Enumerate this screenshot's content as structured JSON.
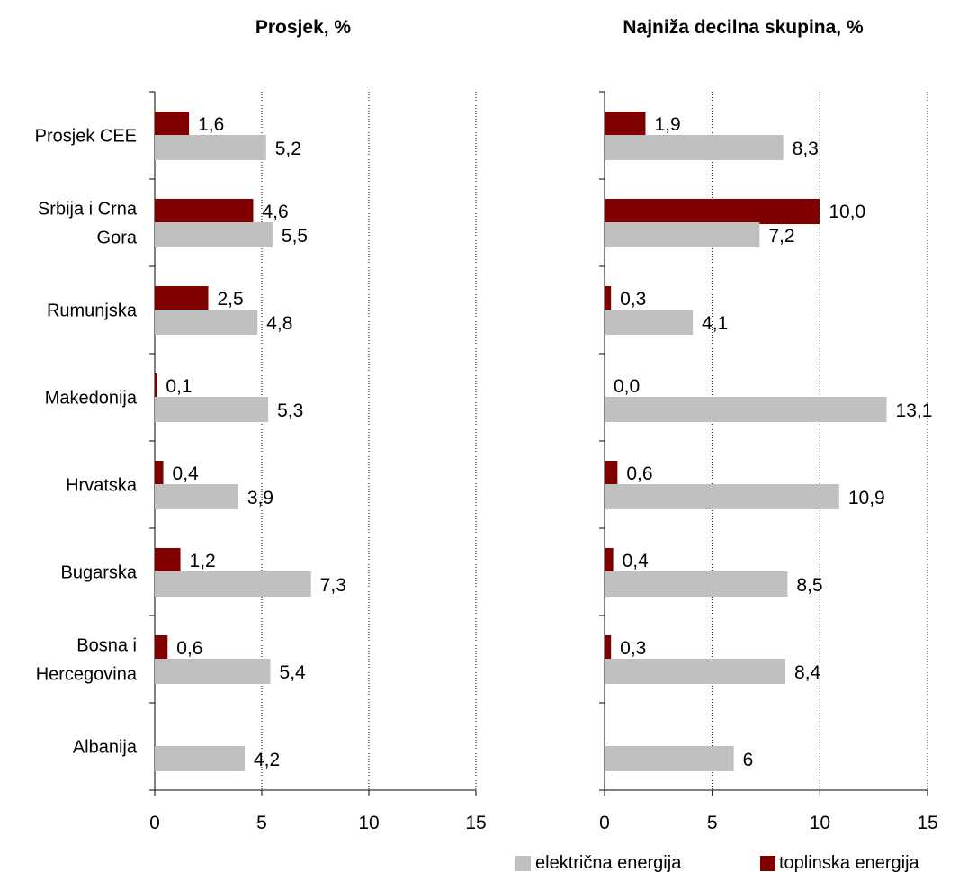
{
  "chart_data": [
    {
      "type": "bar",
      "orientation": "horizontal",
      "title": "Prosjek, %",
      "categories": [
        "Prosjek CEE",
        "Srbija i Crna Gora",
        "Rumunjska",
        "Makedonija",
        "Hrvatska",
        "Bugarska",
        "Bosna i Hercegovina",
        "Albanija"
      ],
      "category_lines": [
        [
          "Prosjek CEE"
        ],
        [
          "Srbija i Crna",
          "Gora"
        ],
        [
          "Rumunjska"
        ],
        [
          "Makedonija"
        ],
        [
          "Hrvatska"
        ],
        [
          "Bugarska"
        ],
        [
          "Bosna i",
          "Hercegovina"
        ],
        [
          "Albanija"
        ]
      ],
      "series": [
        {
          "name": "toplinska energija",
          "color": "#800000",
          "values": [
            1.6,
            4.6,
            2.5,
            0.1,
            0.4,
            1.2,
            0.6,
            null
          ],
          "labels": [
            "1,6",
            "4,6",
            "2,5",
            "0,1",
            "0,4",
            "1,2",
            "0,6",
            ""
          ]
        },
        {
          "name": "električna energija",
          "color": "#c0c0c0",
          "values": [
            5.2,
            5.5,
            4.8,
            5.3,
            3.9,
            7.3,
            5.4,
            4.2
          ],
          "labels": [
            "5,2",
            "5,5",
            "4,8",
            "5,3",
            "3,9",
            "7,3",
            "5,4",
            "4,2"
          ]
        }
      ],
      "xlim": [
        0,
        15
      ],
      "xticks": [
        0,
        5,
        10,
        15
      ],
      "xtick_labels": [
        "0",
        "5",
        "10",
        "15"
      ],
      "grid": "vertical dotted"
    },
    {
      "type": "bar",
      "orientation": "horizontal",
      "title": "Najniža decilna skupina, %",
      "categories": [
        "Prosjek CEE",
        "Srbija i Crna Gora",
        "Rumunjska",
        "Makedonija",
        "Hrvatska",
        "Bugarska",
        "Bosna i Hercegovina",
        "Albanija"
      ],
      "series": [
        {
          "name": "toplinska energija",
          "color": "#800000",
          "values": [
            1.9,
            10.0,
            0.3,
            0.0,
            0.6,
            0.4,
            0.3,
            null
          ],
          "labels": [
            "1,9",
            "10,0",
            "0,3",
            "0,0",
            "0,6",
            "0,4",
            "0,3",
            ""
          ]
        },
        {
          "name": "električna energija",
          "color": "#c0c0c0",
          "values": [
            8.3,
            7.2,
            4.1,
            13.1,
            10.9,
            8.5,
            8.4,
            6
          ],
          "labels": [
            "8,3",
            "7,2",
            "4,1",
            "13,1",
            "10,9",
            "8,5",
            "8,4",
            "6"
          ]
        }
      ],
      "xlim": [
        0,
        15
      ],
      "xticks": [
        0,
        5,
        10,
        15
      ],
      "xtick_labels": [
        "0",
        "5",
        "10",
        "15"
      ],
      "grid": "vertical dotted"
    }
  ],
  "legend": {
    "placement": "bottom-right",
    "items": [
      {
        "label": "električna energija",
        "color": "#c0c0c0"
      },
      {
        "label": "toplinska energija",
        "color": "#800000"
      }
    ]
  }
}
